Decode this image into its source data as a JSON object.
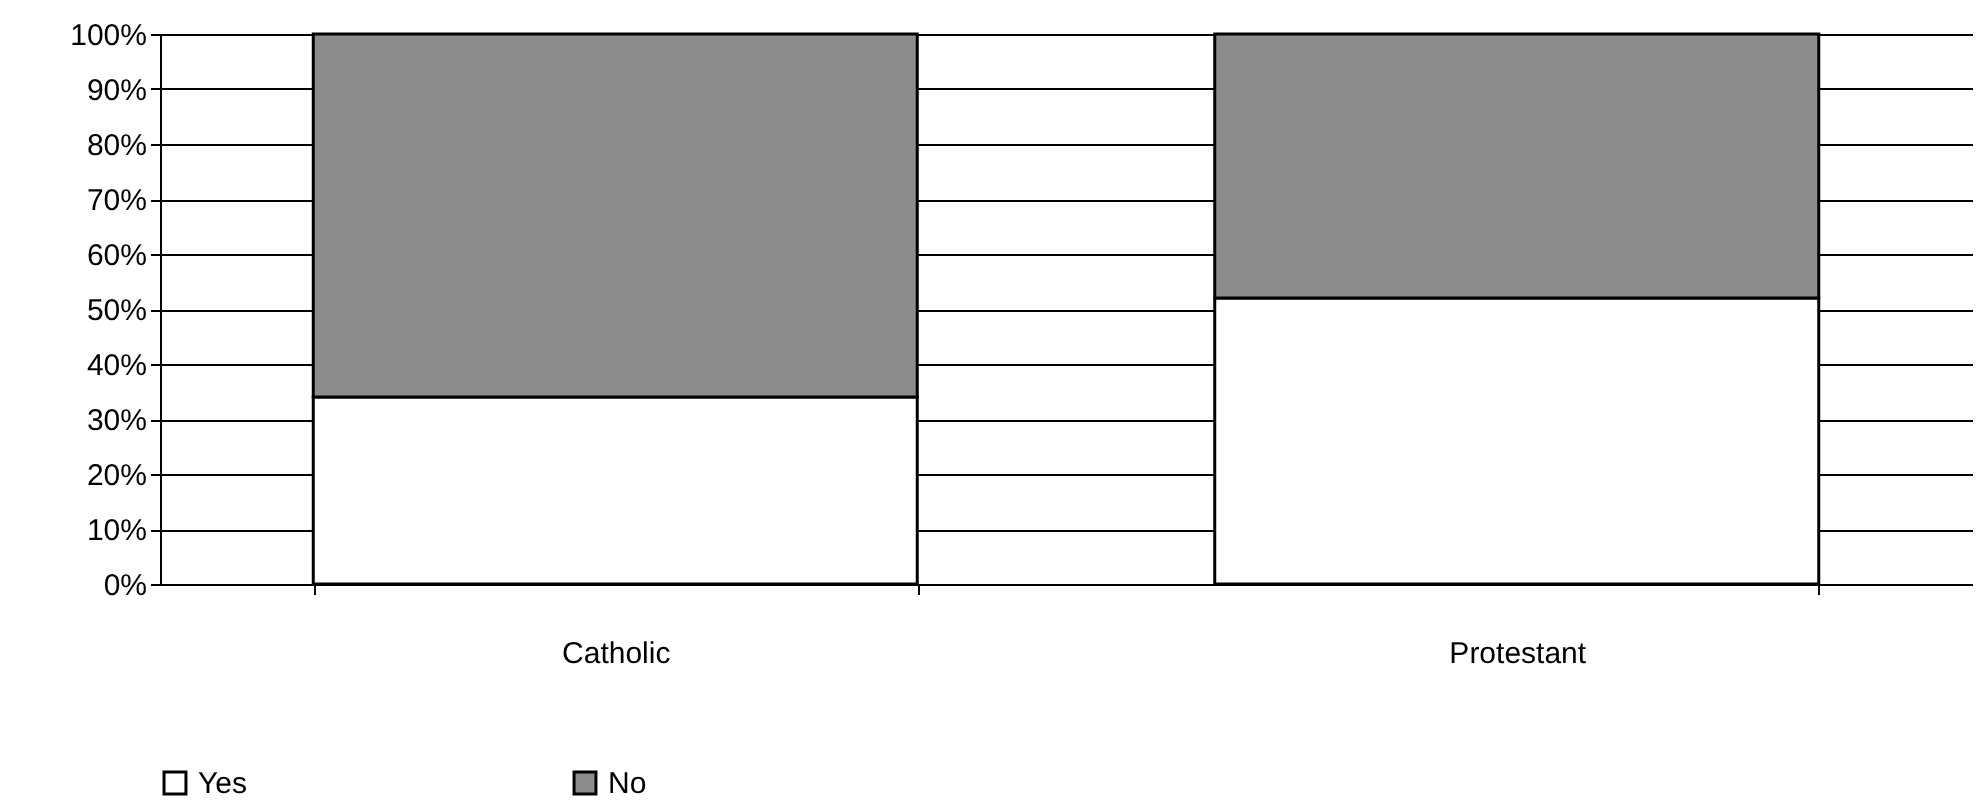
{
  "chart_data": {
    "type": "bar",
    "stacked": true,
    "categories": [
      "Catholic",
      "Protestant"
    ],
    "series": [
      {
        "name": "Yes",
        "color": "#ffffff",
        "values": [
          34,
          52
        ]
      },
      {
        "name": "No",
        "color": "#8c8c8c",
        "values": [
          66,
          48
        ]
      }
    ],
    "ylim": [
      0,
      100
    ],
    "yticks": [
      {
        "value": 0,
        "label": "0%"
      },
      {
        "value": 10,
        "label": "10%"
      },
      {
        "value": 20,
        "label": "20%"
      },
      {
        "value": 30,
        "label": "30%"
      },
      {
        "value": 40,
        "label": "40%"
      },
      {
        "value": 50,
        "label": "50%"
      },
      {
        "value": 60,
        "label": "60%"
      },
      {
        "value": 70,
        "label": "70%"
      },
      {
        "value": 80,
        "label": "80%"
      },
      {
        "value": 90,
        "label": "90%"
      },
      {
        "value": 100,
        "label": "100%"
      }
    ],
    "grid": "y",
    "legend": "bottom"
  }
}
